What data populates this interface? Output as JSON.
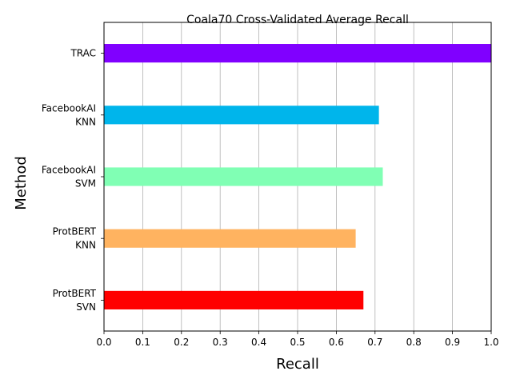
{
  "chart_data": {
    "type": "bar",
    "orientation": "horizontal",
    "title": "Coala70 Cross-Validated Average Recall",
    "xlabel": "Recall",
    "ylabel": "Method",
    "xlim": [
      0.0,
      1.0
    ],
    "x_ticks": [
      "0.0",
      "0.1",
      "0.2",
      "0.3",
      "0.4",
      "0.5",
      "0.6",
      "0.7",
      "0.8",
      "0.9",
      "1.0"
    ],
    "grid": "vertical",
    "categories": [
      [
        "TRAC"
      ],
      [
        "FacebookAI",
        "KNN"
      ],
      [
        "FacebookAI",
        "SVM"
      ],
      [
        "ProtBERT",
        "KNN"
      ],
      [
        "ProtBERT",
        "SVN"
      ]
    ],
    "values": [
      1.0,
      0.71,
      0.72,
      0.65,
      0.67
    ],
    "colors": [
      "#8000ff",
      "#00b5eb",
      "#80ffb4",
      "#ffb360",
      "#ff0000"
    ]
  }
}
